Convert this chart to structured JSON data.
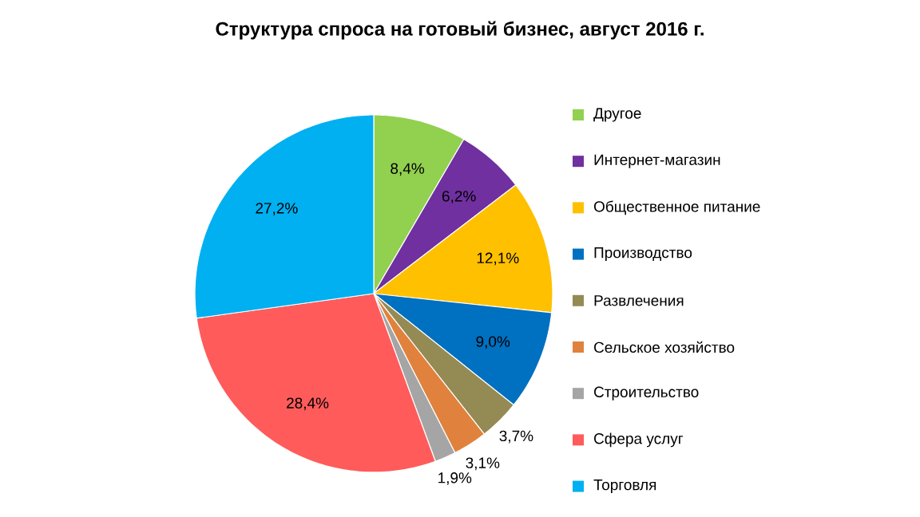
{
  "chart_data": {
    "type": "pie",
    "title": "Структура спроса на готовый бизнес, август 2016 г.",
    "categories": [
      "Другое",
      "Интернет-магазин",
      "Общественное питание",
      "Производство",
      "Развлечения",
      "Сельское хозяйство",
      "Строительство",
      "Сфера услуг",
      "Торговля"
    ],
    "values": [
      8.4,
      6.2,
      12.1,
      9.0,
      3.7,
      3.1,
      1.9,
      28.4,
      27.2
    ],
    "value_labels": [
      "8,4%",
      "6,2%",
      "12,1%",
      "9,0%",
      "3,7%",
      "3,1%",
      "1,9%",
      "28,4%",
      "27,2%"
    ],
    "colors": [
      "#92d050",
      "#7030a0",
      "#ffc000",
      "#0070c0",
      "#948a54",
      "#e0823d",
      "#a5a5a5",
      "#ff5b5b",
      "#00b0f0"
    ],
    "legend": "right"
  }
}
